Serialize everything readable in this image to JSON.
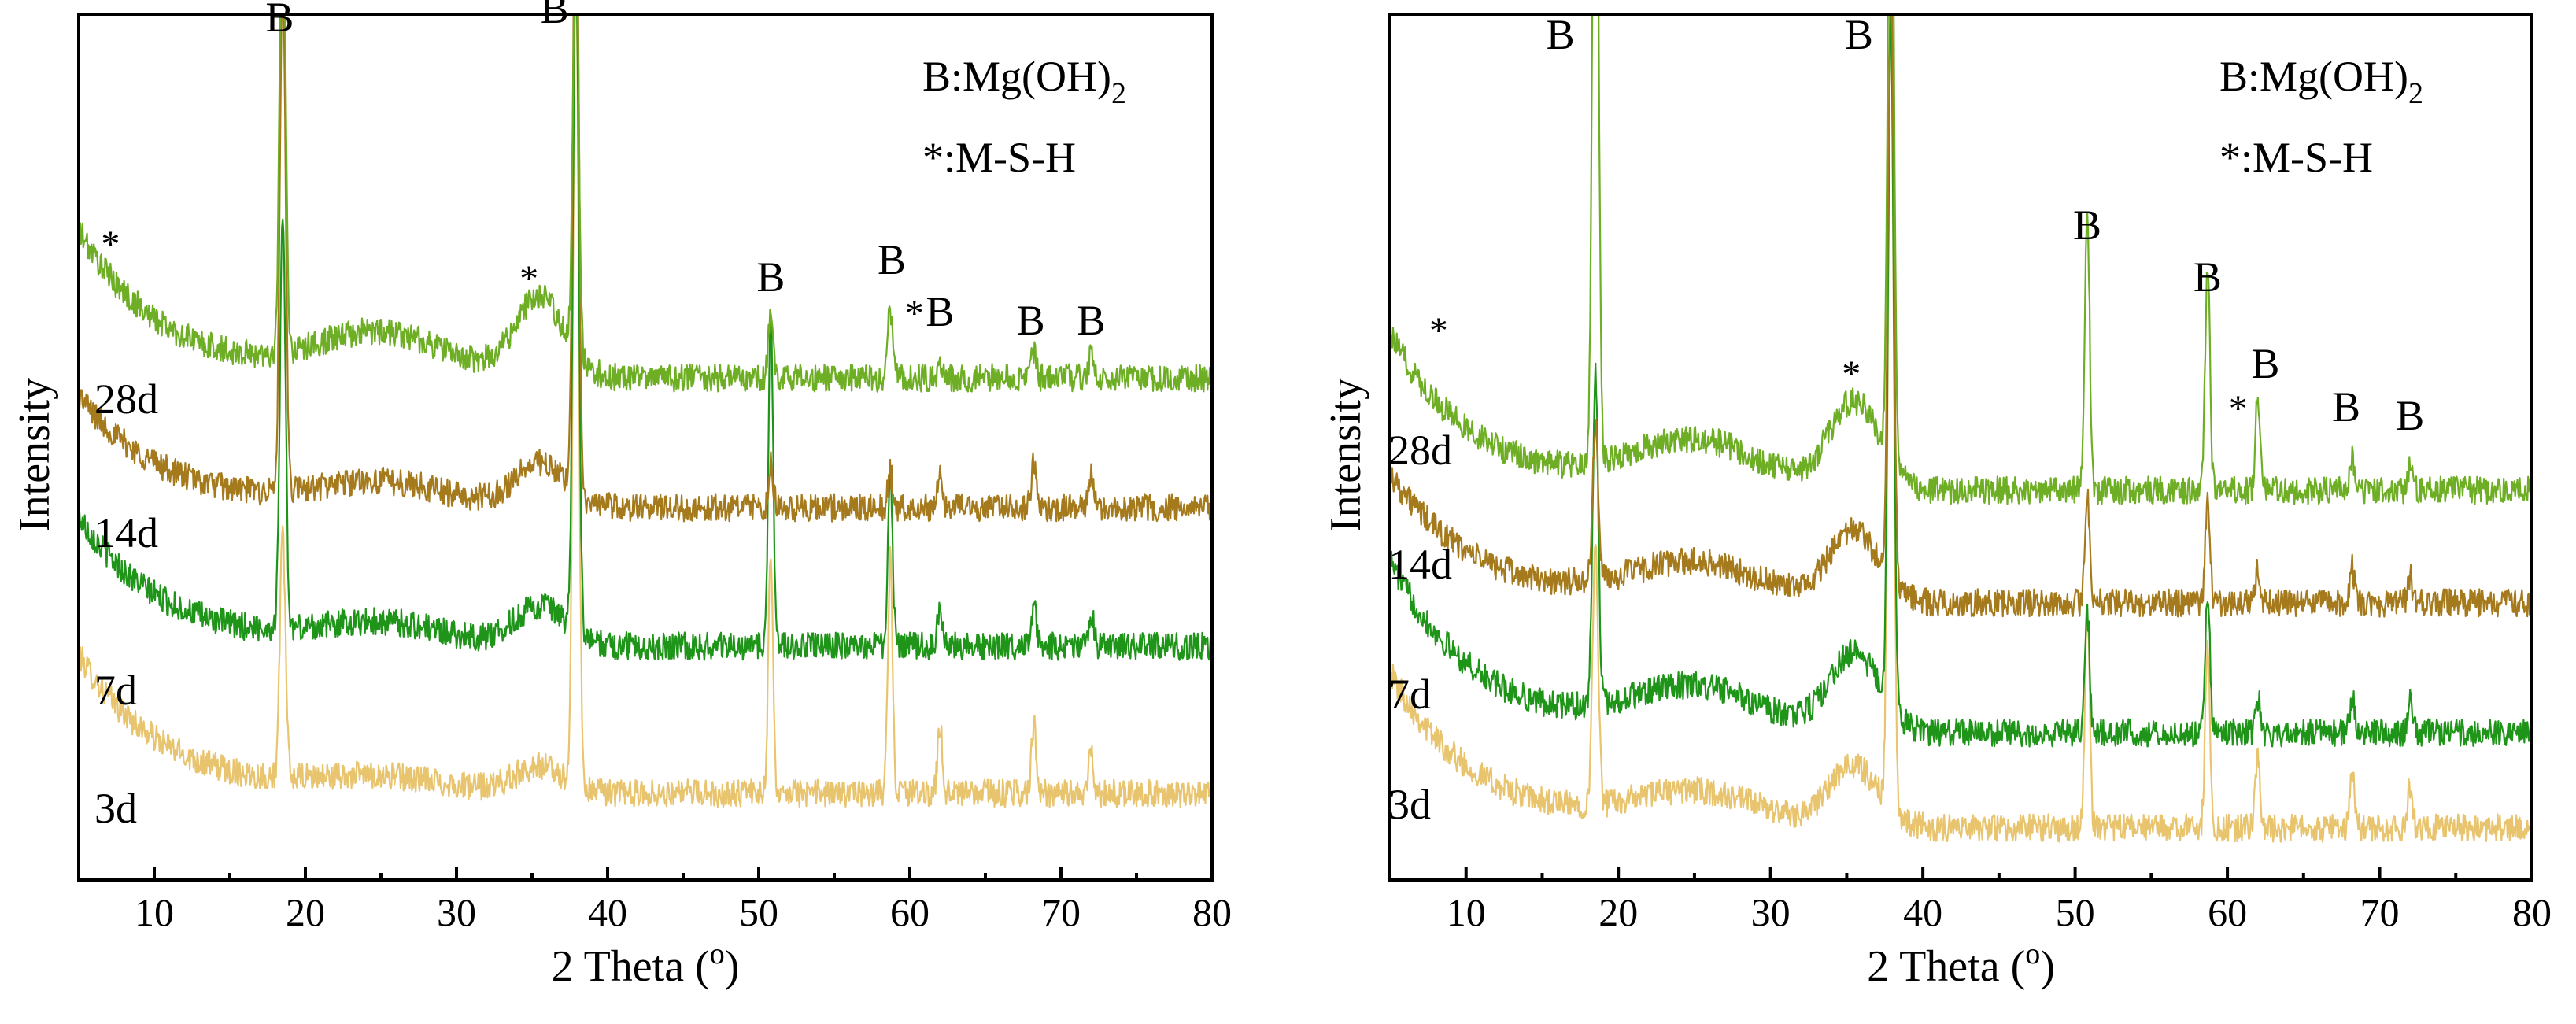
{
  "chart_data": [
    {
      "type": "line",
      "title": "",
      "xlabel": "2 Theta (o)",
      "xlabel_text": "2 Theta (",
      "xlabel_sup": "o",
      "xlabel_close": ")",
      "ylabel": "Intensity",
      "xlim": [
        5,
        80
      ],
      "xticks": [
        10,
        20,
        30,
        40,
        50,
        60,
        70,
        80
      ],
      "legend": {
        "line1": "B:Mg(OH)",
        "line1_sub": "2",
        "line2": "*:M-S-H"
      },
      "series": [
        {
          "name": "3d",
          "color": "#E8C46E",
          "offset": 0.1,
          "bg_start": 0.16,
          "bg_end": 0.0,
          "hump": 0.03,
          "peaks": [
            [
              18.5,
              0.28
            ],
            [
              37.9,
              0.95
            ],
            [
              50.8,
              0.28
            ],
            [
              58.7,
              0.27
            ],
            [
              62.0,
              0.08
            ],
            [
              68.2,
              0.08
            ],
            [
              72.0,
              0.05
            ]
          ]
        },
        {
          "name": "7d",
          "color": "#1E9418",
          "offset": 0.27,
          "bg_start": 0.15,
          "bg_end": 0.0,
          "hump": 0.045,
          "peaks": [
            [
              18.5,
              0.48
            ],
            [
              37.9,
              0.8
            ],
            [
              50.8,
              0.38
            ],
            [
              58.7,
              0.2
            ],
            [
              62.0,
              0.05
            ],
            [
              68.2,
              0.05
            ],
            [
              72.0,
              0.04
            ]
          ]
        },
        {
          "name": "14d",
          "color": "#A47A1C",
          "offset": 0.43,
          "bg_start": 0.13,
          "bg_end": 0.0,
          "hump": 0.05,
          "peaks": [
            [
              18.5,
              0.6
            ],
            [
              37.9,
              0.8
            ],
            [
              50.8,
              0.05
            ],
            [
              58.7,
              0.04
            ],
            [
              62.0,
              0.05
            ],
            [
              68.2,
              0.05
            ],
            [
              72.0,
              0.04
            ]
          ]
        },
        {
          "name": "28d",
          "color": "#6EAE24",
          "offset": 0.58,
          "bg_start": 0.17,
          "bg_end": 0.0,
          "hump": 0.09,
          "peaks": [
            [
              18.5,
              0.6
            ],
            [
              37.9,
              0.5
            ],
            [
              50.8,
              0.08
            ],
            [
              58.7,
              0.08
            ],
            [
              62.0,
              0.02
            ],
            [
              68.2,
              0.03
            ],
            [
              72.0,
              0.03
            ]
          ]
        }
      ],
      "annotations": [
        {
          "text": "B",
          "x": 18.3,
          "y": 0.98
        },
        {
          "text": "B",
          "x": 36.5,
          "y": 0.99
        },
        {
          "text": "B",
          "x": 50.8,
          "y": 0.68
        },
        {
          "text": "B",
          "x": 58.8,
          "y": 0.7
        },
        {
          "text": "B",
          "x": 62.0,
          "y": 0.64
        },
        {
          "text": "B",
          "x": 68.0,
          "y": 0.63
        },
        {
          "text": "B",
          "x": 72.0,
          "y": 0.63
        },
        {
          "text": "*",
          "x": 7.1,
          "y": 0.72
        },
        {
          "text": "*",
          "x": 34.8,
          "y": 0.68
        },
        {
          "text": "*",
          "x": 60.3,
          "y": 0.64
        }
      ]
    },
    {
      "type": "line",
      "title": "",
      "xlabel": "2 Theta (o)",
      "xlabel_text": "2 Theta (",
      "xlabel_sup": "o",
      "xlabel_close": ")",
      "ylabel": "Intensity",
      "xlim": [
        5,
        80
      ],
      "xticks": [
        10,
        20,
        30,
        40,
        50,
        60,
        70,
        80
      ],
      "legend": {
        "line1": "B:Mg(OH)",
        "line1_sub": "2",
        "line2": "*:M-S-H"
      },
      "series": [
        {
          "name": "3d",
          "color": "#E8C46E",
          "offset": 0.06,
          "bg_start": 0.18,
          "bg_end": 0.0,
          "hump": 0.07,
          "peaks": [
            [
              18.5,
              0.3
            ],
            [
              37.9,
              0.92
            ],
            [
              50.8,
              0.25
            ],
            [
              58.7,
              0.21
            ],
            [
              62.0,
              0.08
            ],
            [
              68.2,
              0.06
            ],
            [
              72.0,
              0.05
            ]
          ]
        },
        {
          "name": "7d",
          "color": "#1E9418",
          "offset": 0.17,
          "bg_start": 0.2,
          "bg_end": 0.0,
          "hump": 0.09,
          "peaks": [
            [
              18.5,
              0.38
            ],
            [
              37.9,
              0.8
            ],
            [
              50.8,
              0.14
            ],
            [
              58.7,
              0.16
            ],
            [
              62.0,
              0.04
            ],
            [
              68.2,
              0.04
            ],
            [
              72.0,
              0.04
            ]
          ]
        },
        {
          "name": "14d",
          "color": "#A47A1C",
          "offset": 0.32,
          "bg_start": 0.15,
          "bg_end": 0.0,
          "hump": 0.08,
          "peaks": [
            [
              18.5,
              0.18
            ],
            [
              37.9,
              0.7
            ],
            [
              50.8,
              0.13
            ],
            [
              58.7,
              0.12
            ],
            [
              62.0,
              0.04
            ],
            [
              68.2,
              0.04
            ],
            [
              72.0,
              0.03
            ]
          ]
        },
        {
          "name": "28d",
          "color": "#6EAE24",
          "offset": 0.45,
          "bg_start": 0.18,
          "bg_end": 0.0,
          "hump": 0.1,
          "peaks": [
            [
              18.5,
              1.0
            ],
            [
              37.9,
              0.9
            ],
            [
              50.8,
              0.32
            ],
            [
              58.7,
              0.26
            ],
            [
              62.0,
              0.11
            ],
            [
              68.2,
              0.04
            ],
            [
              72.0,
              0.03
            ]
          ]
        }
      ],
      "annotations": [
        {
          "text": "B",
          "x": 16.2,
          "y": 0.96
        },
        {
          "text": "B",
          "x": 35.8,
          "y": 0.96
        },
        {
          "text": "B",
          "x": 50.8,
          "y": 0.74
        },
        {
          "text": "B",
          "x": 58.7,
          "y": 0.68
        },
        {
          "text": "B",
          "x": 62.5,
          "y": 0.58
        },
        {
          "text": "B",
          "x": 67.8,
          "y": 0.53
        },
        {
          "text": "B",
          "x": 72.0,
          "y": 0.52
        },
        {
          "text": "*",
          "x": 8.2,
          "y": 0.62
        },
        {
          "text": "*",
          "x": 35.3,
          "y": 0.57
        },
        {
          "text": "*",
          "x": 60.7,
          "y": 0.53
        }
      ]
    }
  ]
}
